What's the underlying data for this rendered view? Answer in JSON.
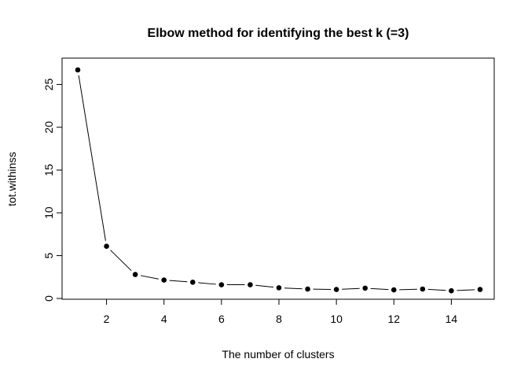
{
  "chart_data": {
    "type": "line",
    "title": "Elbow method for identifying the best k (=3)",
    "xlabel": "The number of clusters",
    "ylabel": "tot.withinss",
    "x": [
      1,
      2,
      3,
      4,
      5,
      6,
      7,
      8,
      9,
      10,
      11,
      12,
      13,
      14,
      15
    ],
    "series": [
      {
        "values": [
          26.7,
          6.1,
          2.8,
          2.15,
          1.9,
          1.6,
          1.6,
          1.25,
          1.1,
          1.05,
          1.2,
          1.0,
          1.1,
          0.9,
          1.05
        ]
      }
    ],
    "xlim": [
      1,
      15
    ],
    "ylim": [
      0,
      26.7
    ],
    "xticks": [
      "2",
      "4",
      "6",
      "8",
      "10",
      "12",
      "14"
    ],
    "yticks": [
      "0",
      "5",
      "10",
      "15",
      "20",
      "25"
    ],
    "grid": false,
    "legend": "none",
    "line_color": "#000000",
    "point_color": "#000000"
  }
}
